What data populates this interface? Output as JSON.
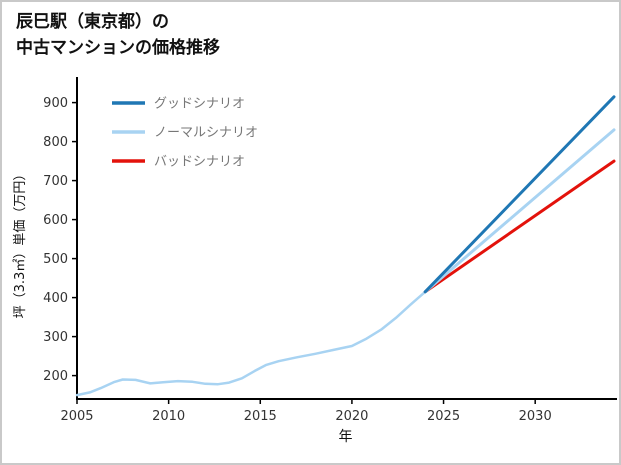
{
  "header": {
    "title": "辰巳駅（東京都）の\n中古マンションの価格推移"
  },
  "chart_data": {
    "type": "line",
    "title": "辰巳駅（東京都）の中古マンションの価格推移",
    "xlabel": "年",
    "ylabel": "坪（3.3㎡）単価（万円）",
    "xlim": [
      2005,
      2034.3
    ],
    "ylim": [
      140,
      940
    ],
    "xticks": [
      2005,
      2010,
      2015,
      2020,
      2025,
      2030
    ],
    "yticks": [
      200,
      300,
      400,
      500,
      600,
      700,
      800,
      900
    ],
    "grid": false,
    "legend_position": "upper-left",
    "axis_color": "#000000",
    "tick_label_color": "#333333",
    "legend_label_color": "#777777",
    "series": [
      {
        "id": "price-history",
        "color": "#a8d3f2",
        "width": 2.5,
        "points": [
          [
            2005,
            150
          ],
          [
            2005.7,
            157
          ],
          [
            2006.3,
            168
          ],
          [
            2007,
            183
          ],
          [
            2007.5,
            190
          ],
          [
            2008.2,
            189
          ],
          [
            2009,
            180
          ],
          [
            2009.7,
            183
          ],
          [
            2010.5,
            186
          ],
          [
            2011.3,
            184
          ],
          [
            2012,
            179
          ],
          [
            2012.7,
            178
          ],
          [
            2013.3,
            182
          ],
          [
            2014,
            193
          ],
          [
            2014.7,
            212
          ],
          [
            2015.3,
            227
          ],
          [
            2016,
            237
          ],
          [
            2017,
            247
          ],
          [
            2018,
            256
          ],
          [
            2019,
            266
          ],
          [
            2020,
            276
          ],
          [
            2020.8,
            295
          ],
          [
            2021.6,
            318
          ],
          [
            2022.4,
            348
          ],
          [
            2023.2,
            382
          ],
          [
            2024,
            415
          ]
        ]
      },
      {
        "id": "bad-scenario",
        "color": "#e3120b",
        "width": 3,
        "points": [
          [
            2024,
            415
          ],
          [
            2034.3,
            750
          ]
        ]
      },
      {
        "id": "normal-scenario",
        "color": "#a8d3f2",
        "width": 3,
        "points": [
          [
            2024,
            415
          ],
          [
            2034.3,
            830
          ]
        ]
      },
      {
        "id": "good-scenario",
        "color": "#1f77b4",
        "width": 3,
        "points": [
          [
            2024,
            415
          ],
          [
            2034.3,
            915
          ]
        ]
      }
    ],
    "legend": [
      {
        "label": "グッドシナリオ",
        "color": "#1f77b4"
      },
      {
        "label": "ノーマルシナリオ",
        "color": "#a8d3f2"
      },
      {
        "label": "バッドシナリオ",
        "color": "#e3120b"
      }
    ]
  }
}
